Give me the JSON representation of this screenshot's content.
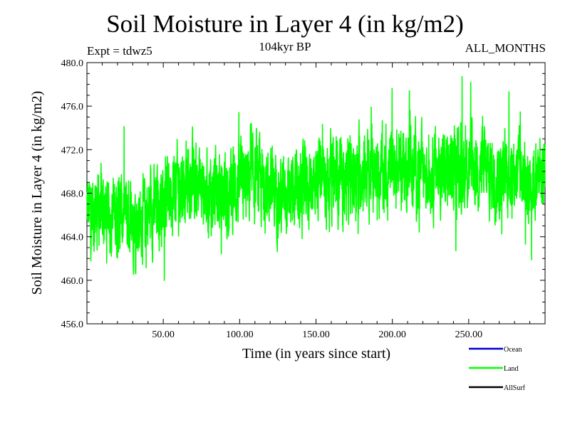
{
  "title": "Soil Moisture in Layer 4 (in kg/m2)",
  "experiment_label": "Expt = tdwz5",
  "period_label": "104kyr BP",
  "months_label": "ALL_MONTHS",
  "colors": {
    "ocean": "#0000cc",
    "land": "#00ff00",
    "allsurf": "#000000"
  },
  "chart_data": {
    "type": "line",
    "title": "Soil Moisture in Layer 4 (in kg/m2)",
    "xlabel": "Time (in years since start)",
    "ylabel": "Soil Moisture in Layer 4 (in kg/m2)",
    "xlim": [
      0,
      300
    ],
    "ylim": [
      456.0,
      480.0
    ],
    "x_ticks": [
      50,
      100,
      150,
      200,
      250
    ],
    "x_tick_labels": [
      "50.00",
      "100.00",
      "150.00",
      "200.00",
      "250.00"
    ],
    "y_ticks": [
      456,
      460,
      464,
      468,
      472,
      476,
      480
    ],
    "y_tick_labels": [
      "456.0",
      "460.0",
      "464.0",
      "468.0",
      "472.0",
      "476.0",
      "480.0"
    ],
    "grid": false,
    "legend_position": "bottom-right",
    "series": [
      {
        "name": "Ocean",
        "color": "#0000cc",
        "values": []
      },
      {
        "name": "Land",
        "color": "#00ff00",
        "trend_x": [
          0,
          10,
          20,
          30,
          40,
          50,
          60,
          70,
          80,
          90,
          100,
          110,
          120,
          130,
          140,
          150,
          160,
          170,
          180,
          190,
          200,
          210,
          220,
          230,
          240,
          250,
          260,
          270,
          280,
          290,
          300
        ],
        "trend_y": [
          466.5,
          466.3,
          466.0,
          465.8,
          466.0,
          467.5,
          469.0,
          469.0,
          468.0,
          468.0,
          468.5,
          469.0,
          468.5,
          467.0,
          468.0,
          469.5,
          469.5,
          469.0,
          470.0,
          470.0,
          470.0,
          470.5,
          470.0,
          470.0,
          470.0,
          470.5,
          470.0,
          469.5,
          470.0,
          469.0,
          470.0
        ],
        "range_min": 458.9,
        "range_max": 479.2
      },
      {
        "name": "AllSurf",
        "color": "#000000",
        "values": []
      }
    ]
  }
}
